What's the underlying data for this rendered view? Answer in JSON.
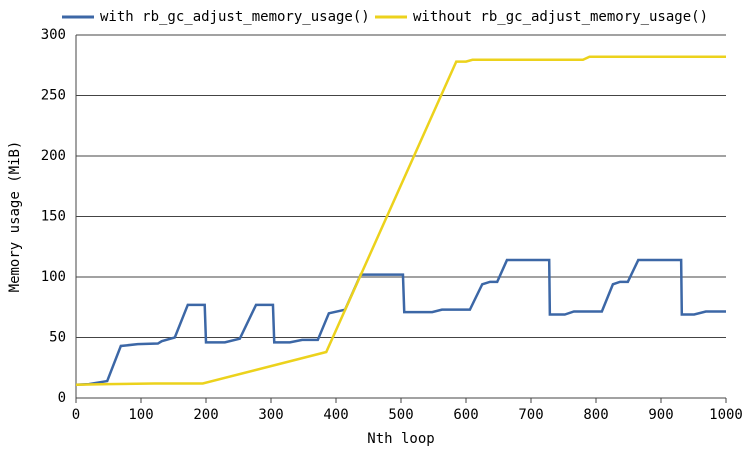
{
  "chart_data": {
    "type": "line",
    "xlabel": "Nth loop",
    "ylabel": "Memory usage (MiB)",
    "xlim": [
      0,
      1000
    ],
    "xticks": [
      0,
      100,
      200,
      300,
      400,
      500,
      600,
      700,
      800,
      900,
      1000
    ],
    "ylim": [
      0,
      300
    ],
    "yticks": [
      0,
      50,
      100,
      150,
      200,
      250,
      300
    ],
    "grid": true,
    "legend": "top",
    "series": [
      {
        "name": "with rb_gc_adjust_memory_usage()",
        "color": "#3c67a6",
        "x": [
          0,
          20,
          48,
          69,
          95,
          126,
          132,
          152,
          172,
          198,
          200,
          229,
          252,
          277,
          303,
          305,
          329,
          348,
          372,
          389,
          414,
          438,
          503,
          505,
          548,
          563,
          606,
          625,
          637,
          648,
          663,
          728,
          729,
          752,
          766,
          809,
          826,
          837,
          849,
          865,
          931,
          932,
          951,
          969,
          1000
        ],
        "values": [
          11,
          11.5,
          14,
          43,
          44.5,
          45,
          47,
          50,
          77,
          77,
          46,
          46,
          49,
          77,
          77,
          46,
          46,
          48,
          48,
          70,
          73,
          102,
          102,
          71,
          71,
          73,
          73,
          94,
          96,
          96,
          114,
          114,
          69,
          69,
          71.5,
          71.5,
          94,
          96,
          96,
          114,
          114,
          69,
          69,
          71.5,
          71.5
        ]
      },
      {
        "name": "without rb_gc_adjust_memory_usage()",
        "color": "#ecd21c",
        "x": [
          0,
          50,
          120,
          195,
          385,
          585,
          600,
          610,
          780,
          790,
          1000
        ],
        "values": [
          11,
          11.5,
          12,
          12,
          38,
          278,
          278,
          279.5,
          279.5,
          282,
          282
        ]
      }
    ]
  }
}
